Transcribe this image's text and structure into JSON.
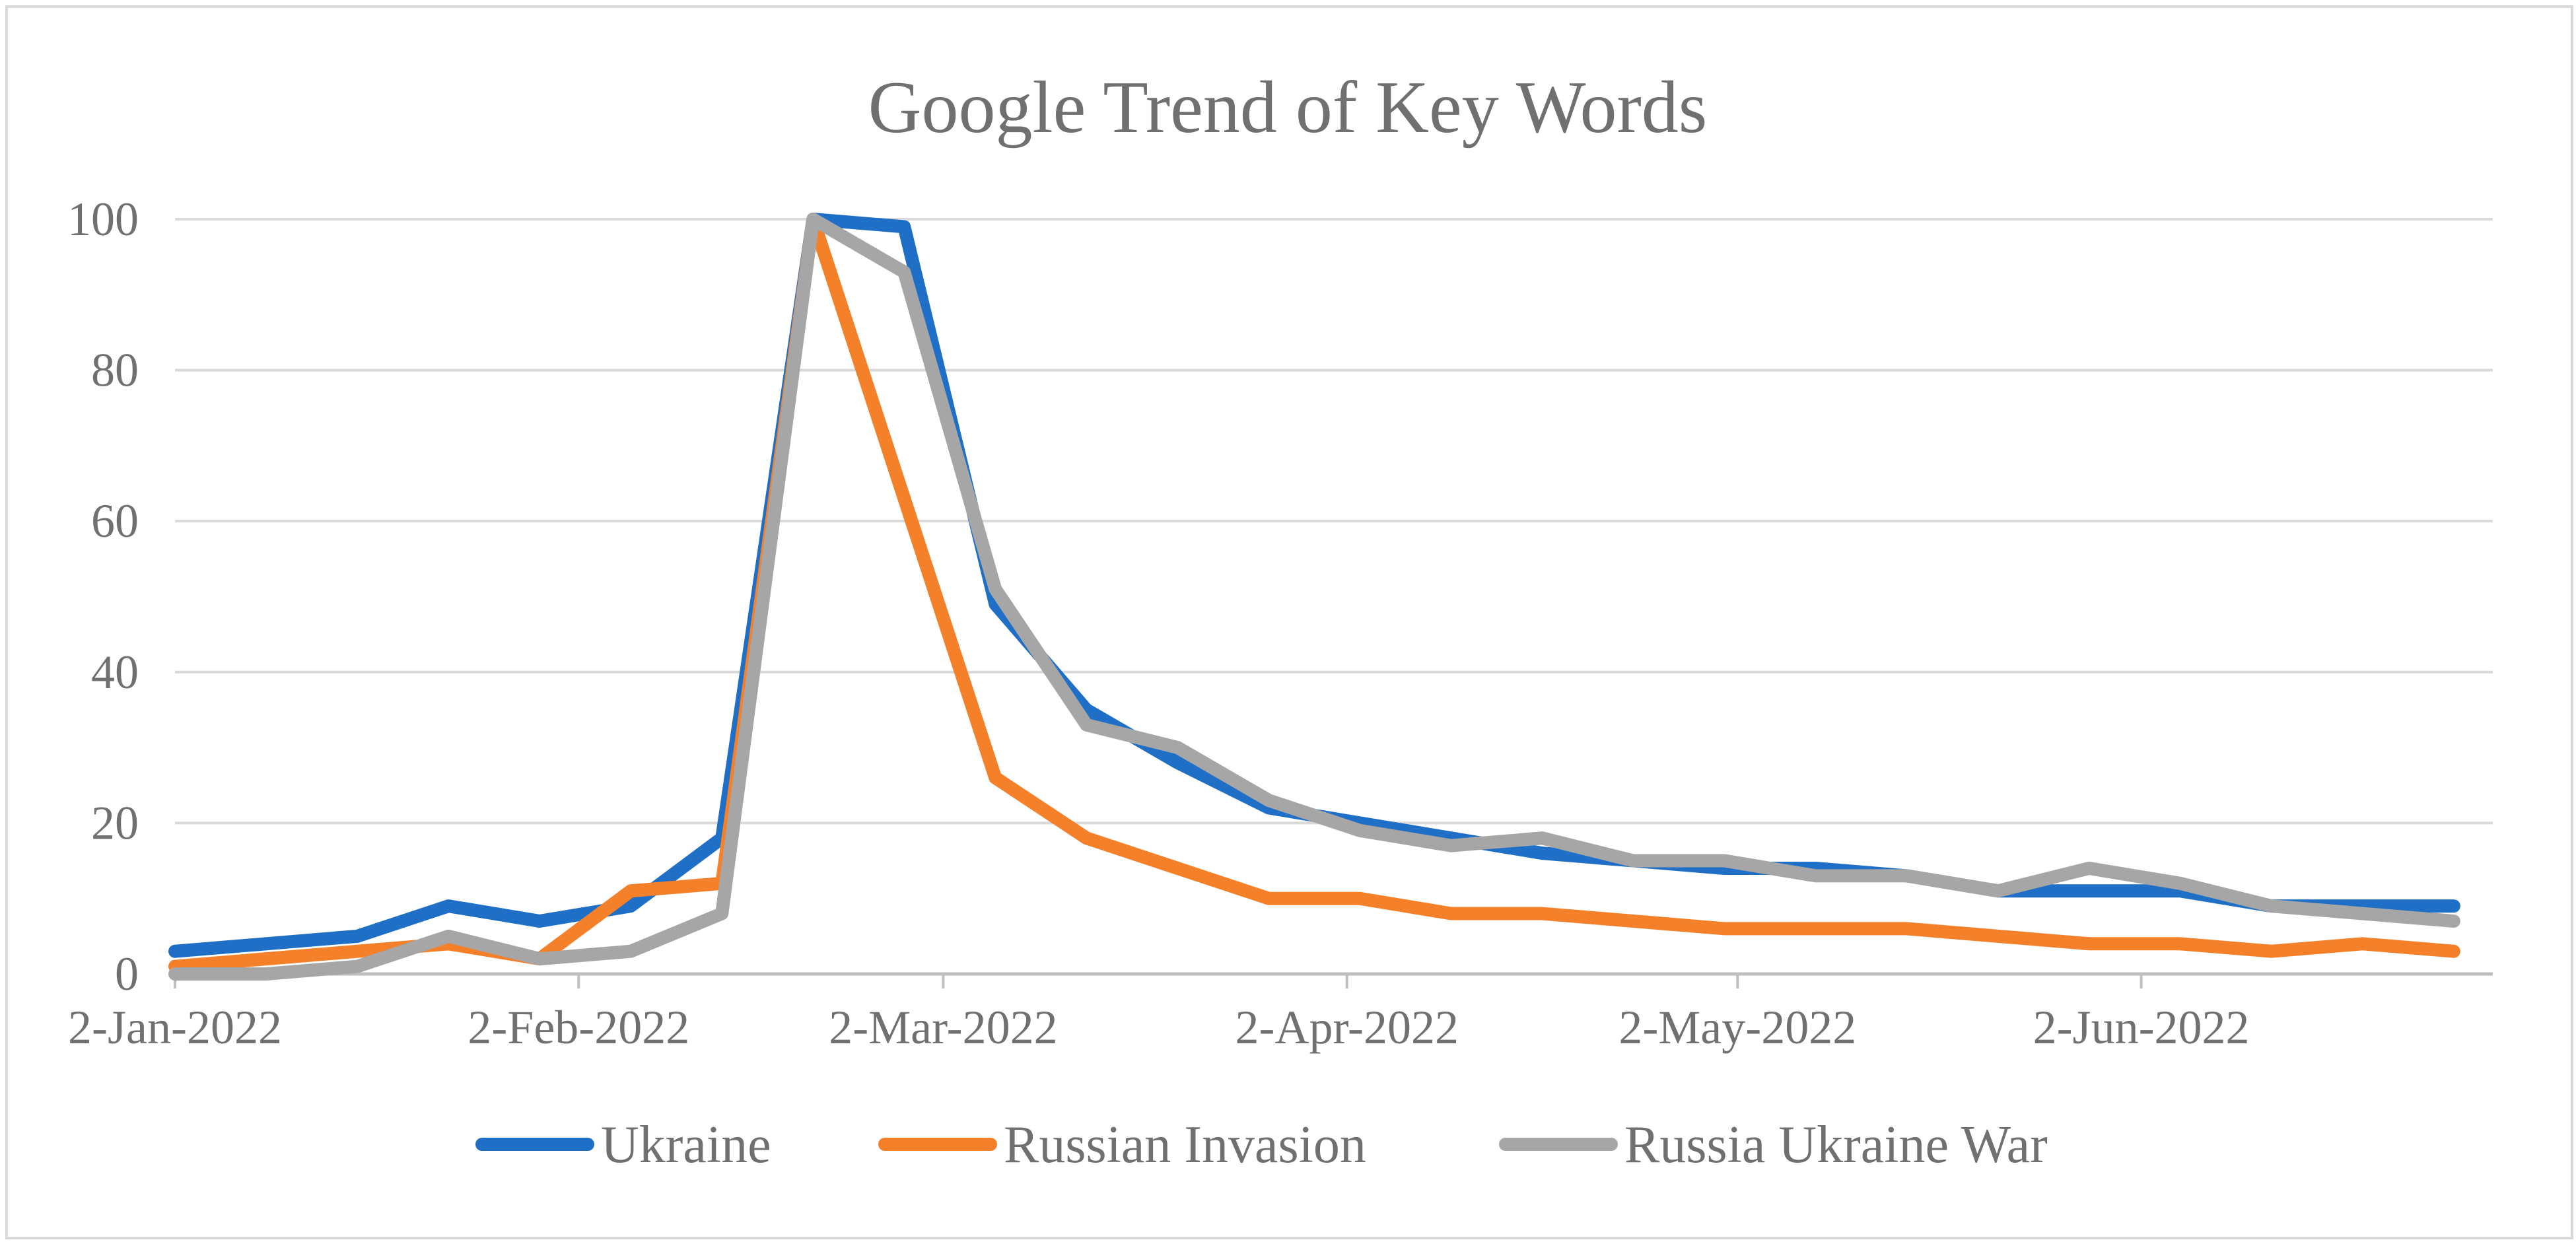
{
  "chart_data": {
    "type": "line",
    "title": "Google Trend of Key Words",
    "xlabel": "",
    "ylabel": "",
    "ylim": [
      0,
      100
    ],
    "yticks": [
      0,
      20,
      40,
      60,
      80,
      100
    ],
    "grid": true,
    "legend_position": "bottom",
    "x_tick_labels": [
      "2-Jan-2022",
      "2-Feb-2022",
      "2-Mar-2022",
      "2-Apr-2022",
      "2-May-2022",
      "2-Jun-2022"
    ],
    "x_tick_dates": [
      "2022-01-02",
      "2022-02-02",
      "2022-03-02",
      "2022-04-02",
      "2022-05-02",
      "2022-06-02"
    ],
    "x_range": [
      "2022-01-02",
      "2022-06-29"
    ],
    "x": [
      "2022-01-02",
      "2022-01-09",
      "2022-01-16",
      "2022-01-23",
      "2022-01-30",
      "2022-02-06",
      "2022-02-13",
      "2022-02-20",
      "2022-02-27",
      "2022-03-06",
      "2022-03-13",
      "2022-03-20",
      "2022-03-27",
      "2022-04-03",
      "2022-04-10",
      "2022-04-17",
      "2022-04-24",
      "2022-05-01",
      "2022-05-08",
      "2022-05-15",
      "2022-05-22",
      "2022-05-29",
      "2022-06-05",
      "2022-06-12",
      "2022-06-19",
      "2022-06-26"
    ],
    "series": [
      {
        "name": "Ukraine",
        "color": "#1f6fc6",
        "values": [
          3,
          4,
          5,
          9,
          7,
          9,
          18,
          100,
          99,
          49,
          35,
          28,
          22,
          20,
          18,
          16,
          15,
          14,
          14,
          13,
          11,
          11,
          11,
          9,
          9,
          9
        ]
      },
      {
        "name": "Russian Invasion",
        "color": "#f5802a",
        "values": [
          1,
          2,
          3,
          4,
          2,
          11,
          12,
          100,
          63,
          26,
          18,
          14,
          10,
          10,
          8,
          8,
          7,
          6,
          6,
          6,
          5,
          4,
          4,
          3,
          4,
          3
        ]
      },
      {
        "name": "Russia Ukraine War",
        "color": "#a6a6a6",
        "values": [
          0,
          0,
          1,
          5,
          2,
          3,
          8,
          100,
          93,
          51,
          33,
          30,
          23,
          19,
          17,
          18,
          15,
          15,
          13,
          13,
          11,
          14,
          12,
          9,
          8,
          7
        ]
      }
    ]
  }
}
